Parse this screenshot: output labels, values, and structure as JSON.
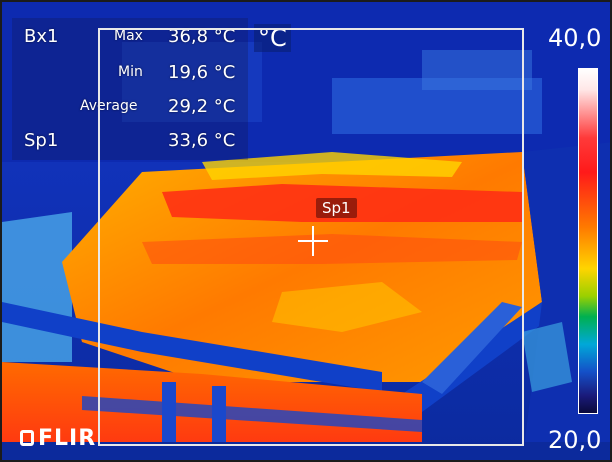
{
  "readout": {
    "box_label": "Bx1",
    "max_label": "Max",
    "max_value": "36,8 °C",
    "min_label": "Min",
    "min_value": "19,6 °C",
    "avg_label": "Average",
    "avg_value": "29,2 °C",
    "spot_label": "Sp1",
    "spot_value": "33,6 °C"
  },
  "unit": "°C",
  "scale": {
    "max": "40,0",
    "min": "20,0"
  },
  "spot_tag": "Sp1",
  "logo": {
    "text": "FLIR"
  },
  "colors": {
    "background_blue": "#0a2fb0",
    "hot": "#ff2a14",
    "warm": "#ff8a00",
    "yellow": "#ffd400"
  }
}
